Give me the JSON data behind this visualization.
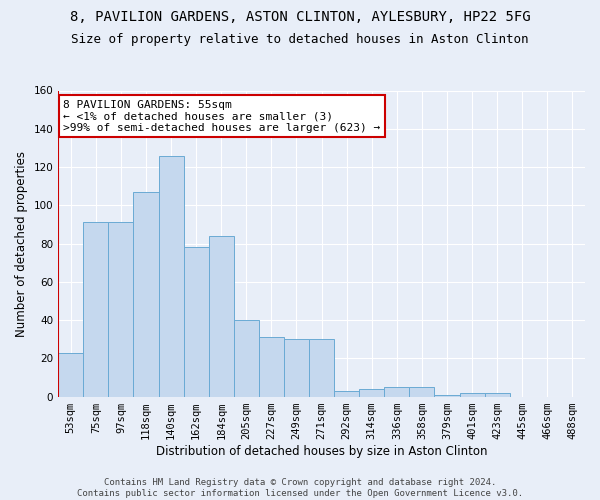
{
  "title1": "8, PAVILION GARDENS, ASTON CLINTON, AYLESBURY, HP22 5FG",
  "title2": "Size of property relative to detached houses in Aston Clinton",
  "xlabel": "Distribution of detached houses by size in Aston Clinton",
  "ylabel": "Number of detached properties",
  "categories": [
    "53sqm",
    "75sqm",
    "97sqm",
    "118sqm",
    "140sqm",
    "162sqm",
    "184sqm",
    "205sqm",
    "227sqm",
    "249sqm",
    "271sqm",
    "292sqm",
    "314sqm",
    "336sqm",
    "358sqm",
    "379sqm",
    "401sqm",
    "423sqm",
    "445sqm",
    "466sqm",
    "488sqm"
  ],
  "values": [
    23,
    91,
    91,
    107,
    126,
    78,
    84,
    40,
    31,
    30,
    30,
    3,
    4,
    5,
    5,
    1,
    2,
    2,
    0,
    0,
    0
  ],
  "bar_color": "#c5d8ee",
  "bar_edge_color": "#6aaad4",
  "highlight_line_color": "#cc0000",
  "annotation_text": "8 PAVILION GARDENS: 55sqm\n← <1% of detached houses are smaller (3)\n>99% of semi-detached houses are larger (623) →",
  "annotation_box_color": "#ffffff",
  "annotation_box_edge": "#cc0000",
  "ylim": [
    0,
    160
  ],
  "yticks": [
    0,
    20,
    40,
    60,
    80,
    100,
    120,
    140,
    160
  ],
  "footer_text": "Contains HM Land Registry data © Crown copyright and database right 2024.\nContains public sector information licensed under the Open Government Licence v3.0.",
  "bg_color": "#e8eef8",
  "grid_color": "#ffffff",
  "title1_fontsize": 10,
  "title2_fontsize": 9,
  "xlabel_fontsize": 8.5,
  "ylabel_fontsize": 8.5,
  "tick_fontsize": 7.5,
  "annotation_fontsize": 8,
  "footer_fontsize": 6.5
}
